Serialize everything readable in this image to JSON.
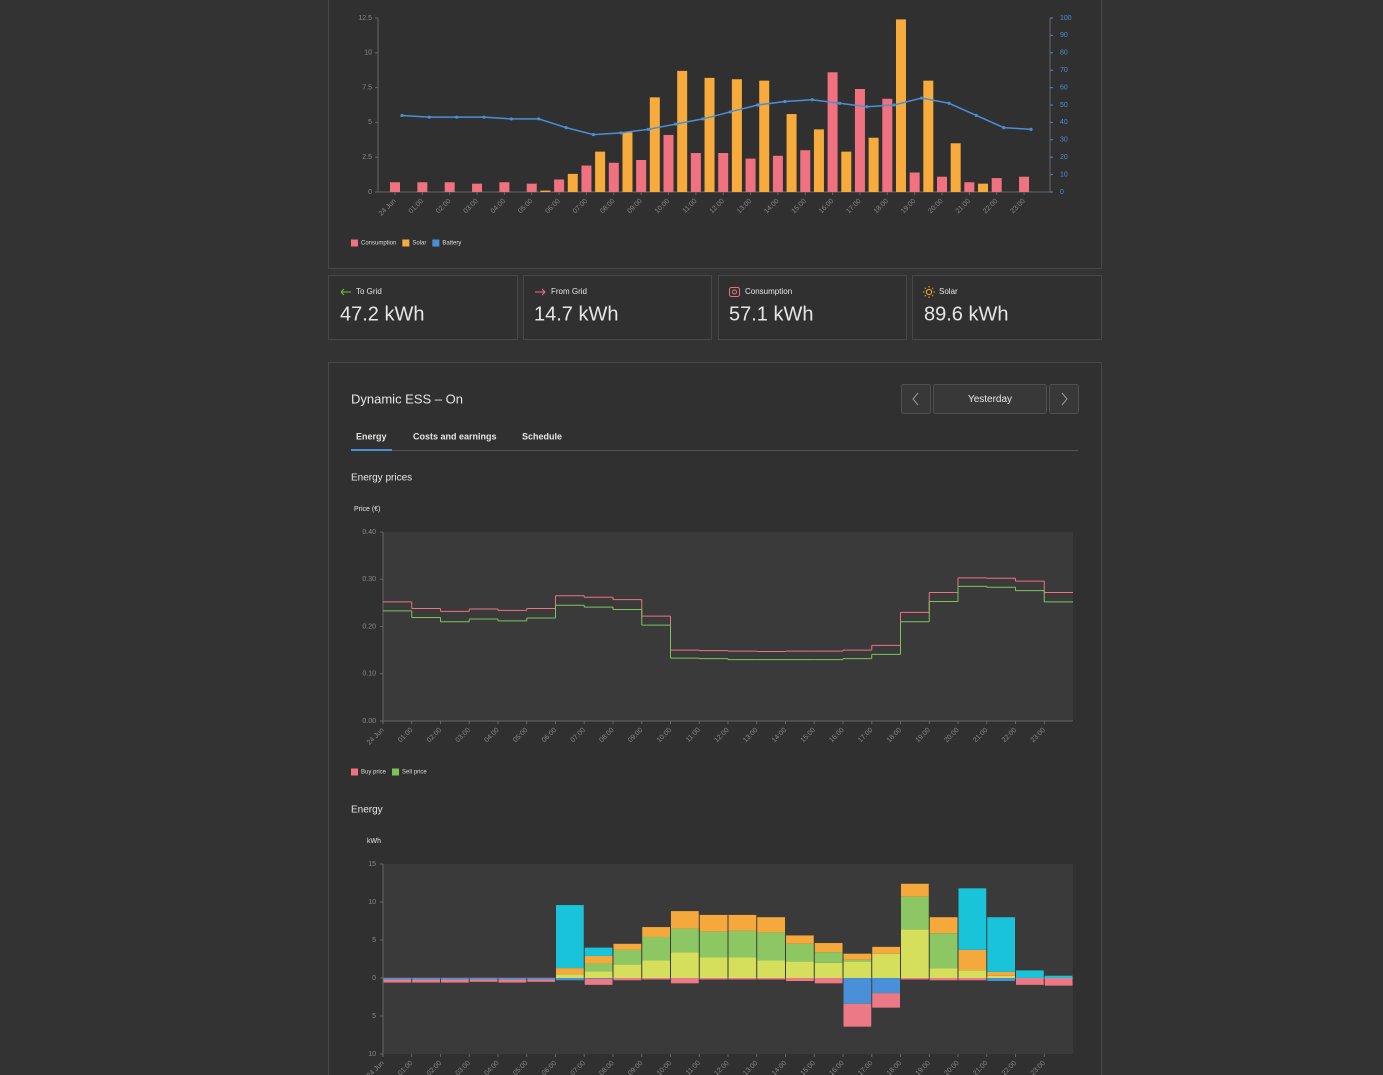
{
  "chart_data": [
    {
      "type": "bar",
      "categories": [
        "24 Jun",
        "01:00",
        "02:00",
        "03:00",
        "04:00",
        "05:00",
        "06:00",
        "07:00",
        "08:00",
        "09:00",
        "10:00",
        "11:00",
        "12:00",
        "13:00",
        "14:00",
        "15:00",
        "16:00",
        "17:00",
        "18:00",
        "19:00",
        "20:00",
        "21:00",
        "22:00",
        "23:00"
      ],
      "series": [
        {
          "name": "Consumption",
          "color": "#f0717f",
          "values": [
            0.7,
            0.7,
            0.7,
            0.6,
            0.7,
            0.6,
            0.9,
            1.9,
            2.1,
            2.3,
            4.1,
            2.8,
            2.8,
            2.4,
            2.6,
            3.0,
            8.6,
            7.4,
            6.7,
            1.4,
            1.1,
            0.7,
            1.0,
            1.1
          ]
        },
        {
          "name": "Solar",
          "color": "#f7ab3d",
          "values": [
            0,
            0,
            0,
            0,
            0,
            0.1,
            1.3,
            2.9,
            4.3,
            6.8,
            8.7,
            8.2,
            8.1,
            8.0,
            5.6,
            4.5,
            2.9,
            3.9,
            12.4,
            8.0,
            3.5,
            0.6,
            0,
            0
          ]
        },
        {
          "name": "Battery",
          "color": "#4a8fd6",
          "type": "line",
          "axis": "y2",
          "values": [
            44,
            43,
            43,
            43,
            42,
            42,
            37,
            33,
            34,
            36,
            39,
            42,
            46,
            50,
            52,
            53,
            51,
            49,
            50,
            54,
            51,
            44,
            37,
            36
          ]
        }
      ],
      "ylim": [
        0,
        12.5
      ],
      "yticks": [
        0,
        2.5,
        5,
        7.5,
        10,
        12.5
      ],
      "y2lim": [
        0,
        100
      ],
      "y2ticks": [
        0,
        10,
        20,
        30,
        40,
        50,
        60,
        70,
        80,
        90,
        100
      ]
    },
    {
      "type": "line",
      "title": "Energy prices",
      "y_label": "Price (€)",
      "step": true,
      "categories": [
        "24 Jun",
        "01:00",
        "02:00",
        "03:00",
        "04:00",
        "05:00",
        "06:00",
        "07:00",
        "08:00",
        "09:00",
        "10:00",
        "11:00",
        "12:00",
        "13:00",
        "14:00",
        "15:00",
        "16:00",
        "17:00",
        "18:00",
        "19:00",
        "20:00",
        "21:00",
        "22:00",
        "23:00"
      ],
      "series": [
        {
          "name": "Buy price",
          "color": "#f0717f",
          "values": [
            0.252,
            0.238,
            0.232,
            0.237,
            0.234,
            0.238,
            0.265,
            0.262,
            0.257,
            0.222,
            0.15,
            0.149,
            0.148,
            0.147,
            0.148,
            0.148,
            0.15,
            0.16,
            0.23,
            0.272,
            0.303,
            0.302,
            0.296,
            0.272
          ]
        },
        {
          "name": "Sell price",
          "color": "#7cc45a",
          "values": [
            0.233,
            0.219,
            0.21,
            0.216,
            0.212,
            0.218,
            0.245,
            0.241,
            0.236,
            0.203,
            0.133,
            0.132,
            0.13,
            0.13,
            0.13,
            0.13,
            0.132,
            0.141,
            0.21,
            0.253,
            0.285,
            0.283,
            0.276,
            0.252
          ]
        }
      ],
      "ylim": [
        0,
        0.4
      ],
      "yticks": [
        {
          "value": 0,
          "label": "0.00"
        },
        {
          "value": 0.1,
          "label": "0.10"
        },
        {
          "value": 0.2,
          "label": "0.20"
        },
        {
          "value": 0.3,
          "label": "0.30"
        },
        {
          "value": 0.4,
          "label": "0.40"
        }
      ]
    },
    {
      "type": "bar",
      "title": "Energy",
      "y_label": "kWh",
      "stacked": true,
      "categories": [
        "24 Jun",
        "01:00",
        "02:00",
        "03:00",
        "04:00",
        "05:00",
        "06:00",
        "07:00",
        "08:00",
        "09:00",
        "10:00",
        "11:00",
        "12:00",
        "13:00",
        "14:00",
        "15:00",
        "16:00",
        "17:00",
        "18:00",
        "19:00",
        "20:00",
        "21:00",
        "22:00",
        "23:00"
      ],
      "series": [
        {
          "color": "#d6df5c",
          "values": [
            0,
            0,
            0,
            0,
            0,
            0,
            0.5,
            0.9,
            1.8,
            2.3,
            3.4,
            2.7,
            2.7,
            2.3,
            2.2,
            2.0,
            2.2,
            3.2,
            6.4,
            1.3,
            1.0,
            0.3,
            0,
            0
          ]
        },
        {
          "color": "#8cc763",
          "values": [
            0,
            0,
            0,
            0,
            0,
            0,
            0,
            1.0,
            1.9,
            3.1,
            3.1,
            3.4,
            3.5,
            3.7,
            2.3,
            1.4,
            0.2,
            0,
            4.3,
            4.6,
            0,
            0,
            0,
            0
          ]
        },
        {
          "color": "#f5a93c",
          "values": [
            0,
            0,
            0,
            0,
            0,
            0,
            0.8,
            1.0,
            0.8,
            1.3,
            2.3,
            2.2,
            2.1,
            2.0,
            1.1,
            1.2,
            0.8,
            0.9,
            1.7,
            2.1,
            2.7,
            0.5,
            0,
            0
          ]
        },
        {
          "color": "#19c3d9",
          "values": [
            0,
            0,
            0,
            0,
            0,
            0,
            8.3,
            1.1,
            0,
            0,
            0,
            0,
            0,
            0,
            0,
            0,
            0,
            0,
            0,
            0,
            8.1,
            7.2,
            1.0,
            0.3
          ]
        },
        {
          "color": "#4a90d9",
          "values": [
            -0.2,
            -0.2,
            -0.2,
            -0.2,
            -0.2,
            -0.2,
            -0.3,
            -0.1,
            0,
            0,
            0,
            0,
            0,
            0,
            0,
            0,
            -3.4,
            -2.0,
            0,
            0,
            0,
            -0.4,
            0,
            0
          ]
        },
        {
          "color": "#ec7a86",
          "values": [
            -0.4,
            -0.4,
            -0.4,
            -0.3,
            -0.4,
            -0.3,
            0,
            -0.8,
            -0.3,
            -0.2,
            -0.7,
            -0.2,
            -0.2,
            -0.2,
            -0.4,
            -0.7,
            -3.0,
            -1.9,
            -0.2,
            -0.3,
            -0.3,
            0,
            -0.9,
            -1.0
          ]
        }
      ],
      "ylim": [
        -10,
        15
      ],
      "yticks": [
        15,
        10,
        5,
        0,
        {
          "value": -5,
          "label": "5"
        },
        {
          "value": -10,
          "label": "10"
        }
      ]
    }
  ],
  "stats": [
    {
      "label": "To Grid",
      "value": "47.2 kWh"
    },
    {
      "label": "From Grid",
      "value": "14.7 kWh"
    },
    {
      "label": "Consumption",
      "value": "57.1 kWh"
    },
    {
      "label": "Solar",
      "value": "89.6 kWh"
    }
  ],
  "panel": {
    "title": "Dynamic ESS – On",
    "date": "Yesterday",
    "tabs": [
      "Energy",
      "Costs and earnings",
      "Schedule"
    ]
  }
}
